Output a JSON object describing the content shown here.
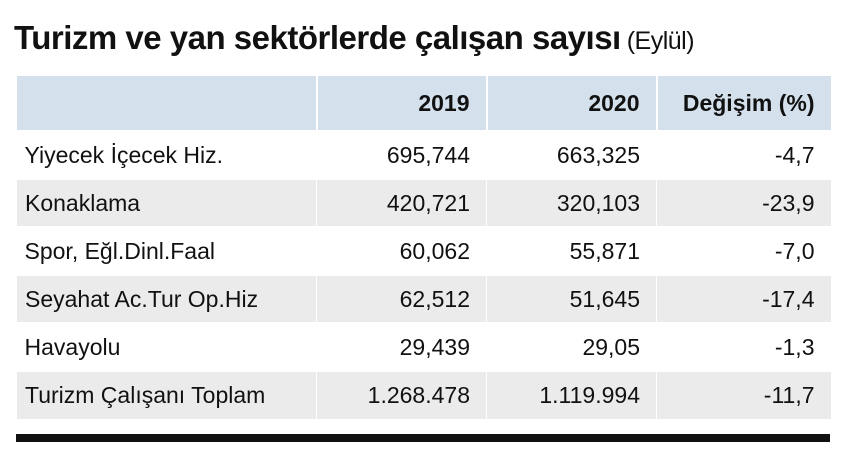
{
  "title": {
    "main": "Turizm ve yan sektörlerde çalışan sayısı",
    "sub": "(Eylül)"
  },
  "table": {
    "columns": [
      "",
      "2019",
      "2020",
      "Değişim (%)"
    ],
    "rows": [
      {
        "name": "Yiyecek İçecek Hiz.",
        "y2019": "695,744",
        "y2020": "663,325",
        "change": "-4,7"
      },
      {
        "name": "Konaklama",
        "y2019": "420,721",
        "y2020": "320,103",
        "change": "-23,9"
      },
      {
        "name": "Spor, Eğl.Dinl.Faal",
        "y2019": "60,062",
        "y2020": "55,871",
        "change": "-7,0"
      },
      {
        "name": "Seyahat Ac.Tur Op.Hiz",
        "y2019": "62,512",
        "y2020": "51,645",
        "change": "-17,4"
      },
      {
        "name": "Havayolu",
        "y2019": "29,439",
        "y2020": "29,05",
        "change": "-1,3"
      },
      {
        "name": "Turizm Çalışanı Toplam",
        "y2019": "1.268.478",
        "y2020": "1.119.994",
        "change": "-11,7"
      }
    ]
  },
  "colors": {
    "header_bg": "#d4e0ec",
    "row_alt_bg": "#ebebeb",
    "rule": "#111111"
  }
}
